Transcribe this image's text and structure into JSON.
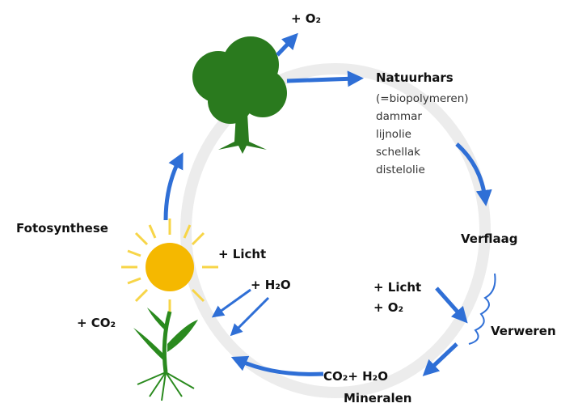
{
  "labels": {
    "tree_output": "+ O₂",
    "natuurhars": {
      "title": "Natuurhars",
      "subtitle": "(=biopolymeren)",
      "items": [
        "dammar",
        "lijnolie",
        "schellak",
        "distelolie"
      ]
    },
    "verflaag": "Verflaag",
    "weathering_inputs": [
      "+ Licht",
      "+ O₂"
    ],
    "verweren": "Verweren",
    "products": "CO₂+ H₂O",
    "mineralen": "Mineralen",
    "fotosynthese": "Fotosynthese",
    "plant_inputs": [
      "+ Licht",
      "+ H₂O",
      "+ CO₂"
    ]
  }
}
